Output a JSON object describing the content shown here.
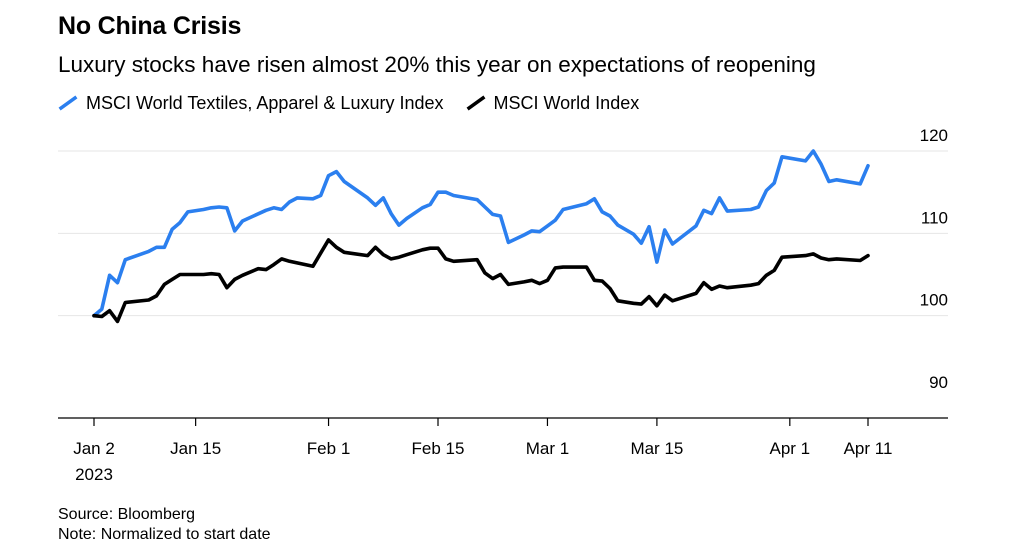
{
  "header": {
    "title": "No China Crisis",
    "subtitle": "Luxury stocks have risen almost 20% this year on expectations of reopening"
  },
  "footer": {
    "source": "Source: Bloomberg",
    "note": "Note: Normalized to start date"
  },
  "colors": {
    "luxury": "#2b7fef",
    "world": "#000000",
    "grid": "#e6e6e6",
    "axis": "#000000"
  },
  "chart_data": {
    "type": "line",
    "title": "No China Crisis",
    "subtitle": "Luxury stocks have risen almost 20% this year on expectations of reopening",
    "xlabel": "",
    "ylabel": "",
    "ylim": [
      87,
      122
    ],
    "y_ticks": [
      90,
      100,
      110,
      120
    ],
    "x_ticks": [
      {
        "date": "2023-01-02",
        "label": "Jan 2",
        "sublabel": "2023"
      },
      {
        "date": "2023-01-15",
        "label": "Jan 15"
      },
      {
        "date": "2023-02-01",
        "label": "Feb 1"
      },
      {
        "date": "2023-02-15",
        "label": "Feb 15"
      },
      {
        "date": "2023-03-01",
        "label": "Mar 1"
      },
      {
        "date": "2023-03-15",
        "label": "Mar 15"
      },
      {
        "date": "2023-04-01",
        "label": "Apr 1"
      },
      {
        "date": "2023-04-11",
        "label": "Apr 11"
      }
    ],
    "grid": true,
    "legend_position": "top-left",
    "series": [
      {
        "name": "MSCI World Textiles, Apparel & Luxury Index",
        "color": "#2b7fef",
        "points": [
          [
            "2023-01-02",
            100.0
          ],
          [
            "2023-01-03",
            100.8
          ],
          [
            "2023-01-04",
            104.9
          ],
          [
            "2023-01-05",
            104.0
          ],
          [
            "2023-01-06",
            106.8
          ],
          [
            "2023-01-09",
            107.8
          ],
          [
            "2023-01-10",
            108.3
          ],
          [
            "2023-01-11",
            108.3
          ],
          [
            "2023-01-12",
            110.5
          ],
          [
            "2023-01-13",
            111.3
          ],
          [
            "2023-01-14",
            112.6
          ],
          [
            "2023-01-16",
            112.9
          ],
          [
            "2023-01-17",
            113.1
          ],
          [
            "2023-01-18",
            113.2
          ],
          [
            "2023-01-19",
            113.1
          ],
          [
            "2023-01-20",
            110.3
          ],
          [
            "2023-01-21",
            111.5
          ],
          [
            "2023-01-24",
            112.8
          ],
          [
            "2023-01-25",
            113.1
          ],
          [
            "2023-01-26",
            112.9
          ],
          [
            "2023-01-27",
            113.8
          ],
          [
            "2023-01-28",
            114.3
          ],
          [
            "2023-01-30",
            114.2
          ],
          [
            "2023-01-31",
            114.6
          ],
          [
            "2023-02-01",
            117.0
          ],
          [
            "2023-02-02",
            117.5
          ],
          [
            "2023-02-03",
            116.3
          ],
          [
            "2023-02-06",
            114.3
          ],
          [
            "2023-02-07",
            113.4
          ],
          [
            "2023-02-08",
            114.3
          ],
          [
            "2023-02-09",
            112.4
          ],
          [
            "2023-02-10",
            111.0
          ],
          [
            "2023-02-11",
            111.8
          ],
          [
            "2023-02-13",
            113.1
          ],
          [
            "2023-02-14",
            113.5
          ],
          [
            "2023-02-15",
            115.0
          ],
          [
            "2023-02-16",
            115.0
          ],
          [
            "2023-02-17",
            114.6
          ],
          [
            "2023-02-20",
            114.1
          ],
          [
            "2023-02-21",
            113.2
          ],
          [
            "2023-02-22",
            112.3
          ],
          [
            "2023-02-23",
            112.1
          ],
          [
            "2023-02-24",
            108.9
          ],
          [
            "2023-02-26",
            109.8
          ],
          [
            "2023-02-27",
            110.3
          ],
          [
            "2023-02-28",
            110.2
          ],
          [
            "2023-03-01",
            110.9
          ],
          [
            "2023-03-02",
            111.6
          ],
          [
            "2023-03-03",
            112.9
          ],
          [
            "2023-03-06",
            113.6
          ],
          [
            "2023-03-07",
            114.2
          ],
          [
            "2023-03-08",
            112.6
          ],
          [
            "2023-03-09",
            112.1
          ],
          [
            "2023-03-10",
            111.0
          ],
          [
            "2023-03-12",
            109.9
          ],
          [
            "2023-03-13",
            108.8
          ],
          [
            "2023-03-14",
            110.8
          ],
          [
            "2023-03-15",
            106.5
          ],
          [
            "2023-03-16",
            110.4
          ],
          [
            "2023-03-17",
            108.7
          ],
          [
            "2023-03-20",
            110.9
          ],
          [
            "2023-03-21",
            112.8
          ],
          [
            "2023-03-22",
            112.4
          ],
          [
            "2023-03-23",
            114.3
          ],
          [
            "2023-03-24",
            112.7
          ],
          [
            "2023-03-27",
            112.9
          ],
          [
            "2023-03-28",
            113.2
          ],
          [
            "2023-03-29",
            115.2
          ],
          [
            "2023-03-30",
            116.1
          ],
          [
            "2023-03-31",
            119.3
          ],
          [
            "2023-04-03",
            118.8
          ],
          [
            "2023-04-04",
            120.0
          ],
          [
            "2023-04-05",
            118.4
          ],
          [
            "2023-04-06",
            116.3
          ],
          [
            "2023-04-07",
            116.5
          ],
          [
            "2023-04-10",
            116.0
          ],
          [
            "2023-04-11",
            118.2
          ]
        ]
      },
      {
        "name": "MSCI World Index",
        "color": "#000000",
        "points": [
          [
            "2023-01-02",
            100.0
          ],
          [
            "2023-01-03",
            99.9
          ],
          [
            "2023-01-04",
            100.6
          ],
          [
            "2023-01-05",
            99.3
          ],
          [
            "2023-01-06",
            101.6
          ],
          [
            "2023-01-09",
            101.9
          ],
          [
            "2023-01-10",
            102.4
          ],
          [
            "2023-01-11",
            103.8
          ],
          [
            "2023-01-12",
            104.4
          ],
          [
            "2023-01-13",
            105.0
          ],
          [
            "2023-01-14",
            105.0
          ],
          [
            "2023-01-16",
            105.0
          ],
          [
            "2023-01-17",
            105.1
          ],
          [
            "2023-01-18",
            105.0
          ],
          [
            "2023-01-19",
            103.4
          ],
          [
            "2023-01-20",
            104.4
          ],
          [
            "2023-01-21",
            104.9
          ],
          [
            "2023-01-23",
            105.7
          ],
          [
            "2023-01-24",
            105.6
          ],
          [
            "2023-01-25",
            106.2
          ],
          [
            "2023-01-26",
            106.9
          ],
          [
            "2023-01-27",
            106.6
          ],
          [
            "2023-01-30",
            106.0
          ],
          [
            "2023-01-31",
            107.6
          ],
          [
            "2023-02-01",
            109.2
          ],
          [
            "2023-02-02",
            108.3
          ],
          [
            "2023-02-03",
            107.7
          ],
          [
            "2023-02-06",
            107.3
          ],
          [
            "2023-02-07",
            108.3
          ],
          [
            "2023-02-08",
            107.4
          ],
          [
            "2023-02-09",
            106.9
          ],
          [
            "2023-02-10",
            107.1
          ],
          [
            "2023-02-11",
            107.4
          ],
          [
            "2023-02-13",
            108.0
          ],
          [
            "2023-02-14",
            108.2
          ],
          [
            "2023-02-15",
            108.2
          ],
          [
            "2023-02-16",
            106.9
          ],
          [
            "2023-02-17",
            106.6
          ],
          [
            "2023-02-20",
            106.8
          ],
          [
            "2023-02-21",
            105.2
          ],
          [
            "2023-02-22",
            104.5
          ],
          [
            "2023-02-23",
            105.0
          ],
          [
            "2023-02-24",
            103.8
          ],
          [
            "2023-02-26",
            104.1
          ],
          [
            "2023-02-27",
            104.3
          ],
          [
            "2023-02-28",
            103.9
          ],
          [
            "2023-03-01",
            104.3
          ],
          [
            "2023-03-02",
            105.8
          ],
          [
            "2023-03-03",
            105.9
          ],
          [
            "2023-03-06",
            105.9
          ],
          [
            "2023-03-07",
            104.3
          ],
          [
            "2023-03-08",
            104.2
          ],
          [
            "2023-03-09",
            103.3
          ],
          [
            "2023-03-10",
            101.8
          ],
          [
            "2023-03-12",
            101.5
          ],
          [
            "2023-03-13",
            101.4
          ],
          [
            "2023-03-14",
            102.3
          ],
          [
            "2023-03-15",
            101.2
          ],
          [
            "2023-03-16",
            102.5
          ],
          [
            "2023-03-17",
            101.8
          ],
          [
            "2023-03-20",
            102.7
          ],
          [
            "2023-03-21",
            104.0
          ],
          [
            "2023-03-22",
            103.2
          ],
          [
            "2023-03-23",
            103.6
          ],
          [
            "2023-03-24",
            103.4
          ],
          [
            "2023-03-27",
            103.7
          ],
          [
            "2023-03-28",
            103.9
          ],
          [
            "2023-03-29",
            104.9
          ],
          [
            "2023-03-30",
            105.5
          ],
          [
            "2023-03-31",
            107.1
          ],
          [
            "2023-04-03",
            107.3
          ],
          [
            "2023-04-04",
            107.5
          ],
          [
            "2023-04-05",
            107.0
          ],
          [
            "2023-04-06",
            106.8
          ],
          [
            "2023-04-07",
            106.9
          ],
          [
            "2023-04-10",
            106.7
          ],
          [
            "2023-04-11",
            107.3
          ]
        ]
      }
    ]
  }
}
